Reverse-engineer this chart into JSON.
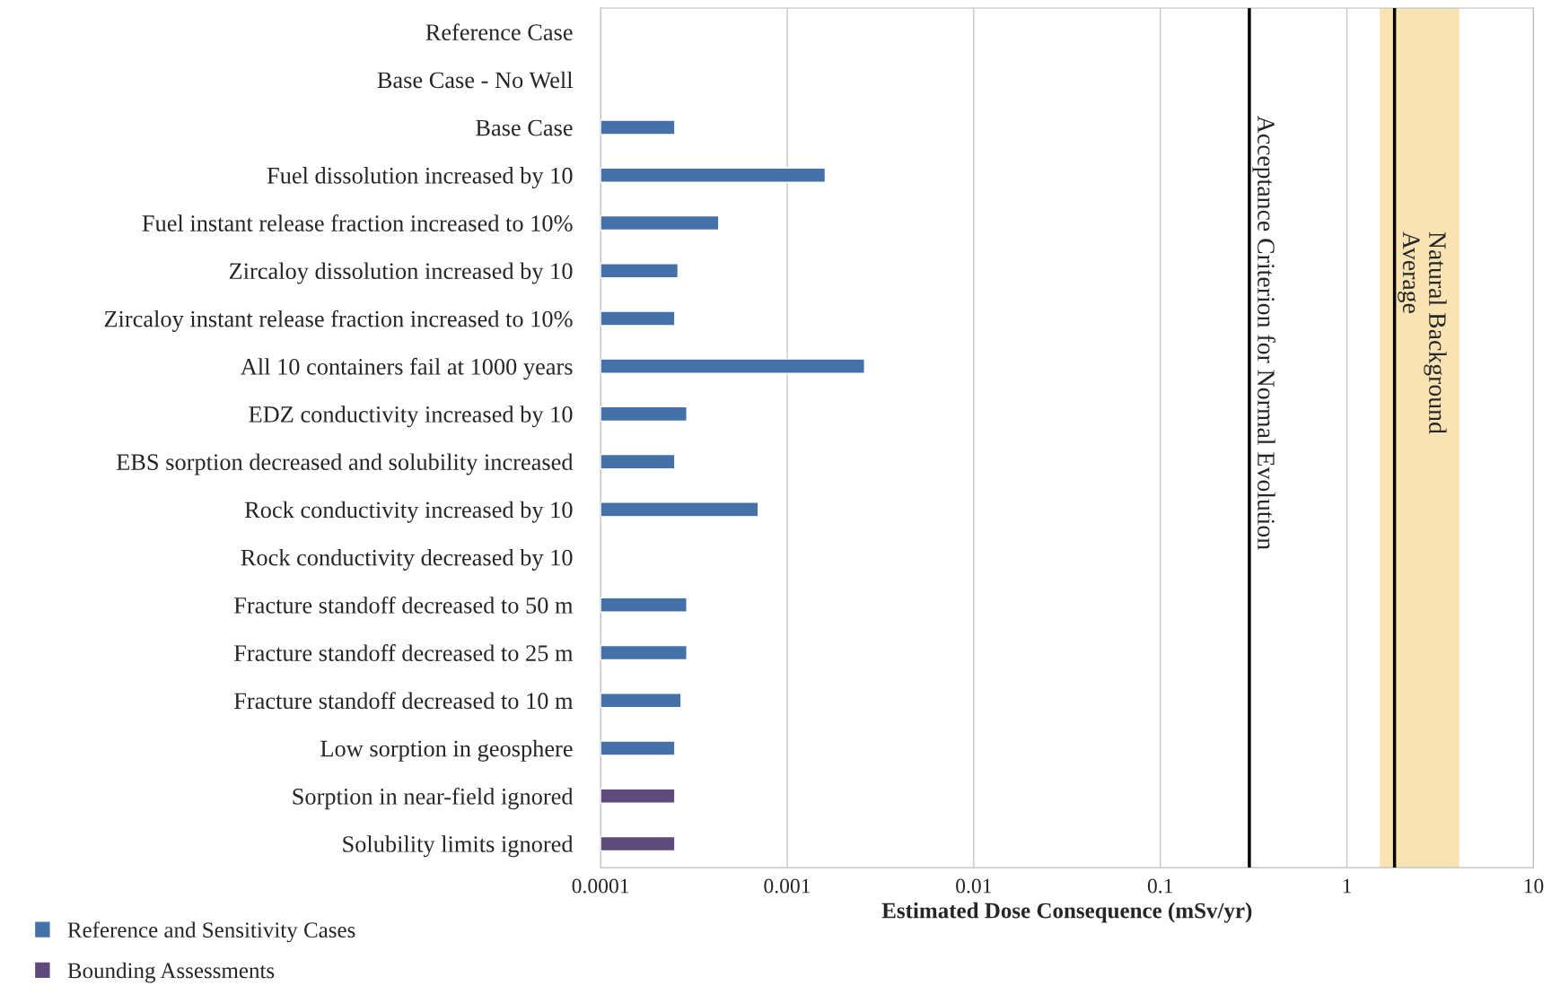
{
  "chart_data": {
    "type": "bar",
    "orientation": "horizontal",
    "xlabel": "Estimated Dose Consequence (mSv/yr)",
    "categories": [
      "Reference Case",
      "Base Case - No Well",
      "Base Case",
      "Fuel dissolution increased by 10",
      "Fuel instant release fraction increased to 10%",
      "Zircaloy dissolution increased by 10",
      "Zircaloy instant release fraction increased to 10%",
      "All 10 containers fail at 1000 years",
      "EDZ conductivity increased by 10",
      "EBS sorption decreased and solubility increased",
      "Rock conductivity increased by 10",
      "Rock conductivity decreased by 10",
      "Fracture standoff decreased to 50 m",
      "Fracture standoff decreased to 25 m",
      "Fracture standoff decreased to 10 m",
      "Low sorption in geosphere",
      "Sorption in near-field ignored",
      "Solubility limits ignored"
    ],
    "series": [
      {
        "name": "Reference and Sensitivity Cases",
        "color": "#4472a8",
        "values": [
          null,
          null,
          0.00025,
          0.0016,
          0.00043,
          0.00026,
          0.00025,
          0.0026,
          0.00029,
          0.00025,
          0.0007,
          null,
          0.00029,
          0.00029,
          0.00027,
          0.00025,
          null,
          null
        ]
      },
      {
        "name": "Bounding Assessments",
        "color": "#5f4a7c",
        "values": [
          null,
          null,
          null,
          null,
          null,
          null,
          null,
          null,
          null,
          null,
          null,
          null,
          null,
          null,
          null,
          null,
          0.00025,
          0.00025
        ]
      }
    ],
    "log": "x",
    "xlim": [
      0.0001,
      10
    ],
    "xticks": [
      0.0001,
      0.001,
      0.01,
      0.1,
      1,
      10
    ],
    "grid": "x",
    "legend": "bottom left",
    "ref_lines": [
      {
        "axis": "x",
        "value": 0.3,
        "label": "Acceptance Criterion for Normal Evolution",
        "color": "#000000"
      },
      {
        "axis": "x",
        "value": 1.8,
        "label": "Natural Background\nAverage",
        "color": "#000000"
      }
    ],
    "bands": [
      {
        "axis": "x",
        "from": 1.5,
        "to": 4,
        "color": "#f9e3b2"
      }
    ]
  }
}
